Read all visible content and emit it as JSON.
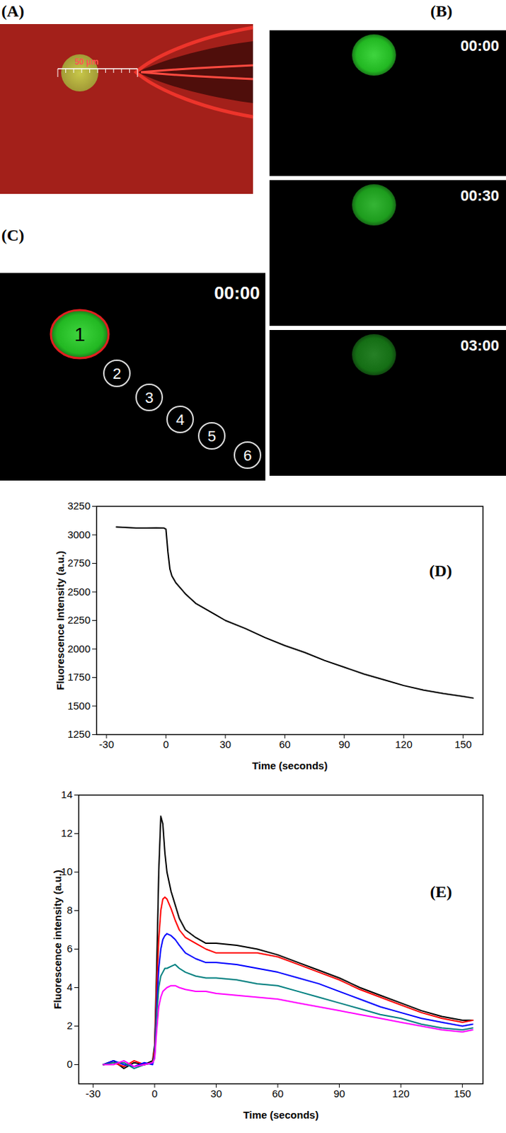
{
  "image_panels": {
    "A": {
      "label": "(A)",
      "scale_bar": "50 μm"
    },
    "B": {
      "label": "(B)",
      "timestamps": [
        "00:00",
        "00:30",
        "03:00"
      ]
    },
    "C": {
      "label": "(C)",
      "timestamp": "00:00",
      "regions": [
        "1",
        "2",
        "3",
        "4",
        "5",
        "6"
      ]
    }
  },
  "chart_data": [
    {
      "type": "line",
      "annotations": [
        "(D)"
      ],
      "x_label": "Time (seconds)",
      "y_label": "Fluorescence Intensity (a.u.)",
      "x": [
        -25,
        -20,
        -15,
        -10,
        -5,
        -1,
        0,
        1,
        2,
        3,
        5,
        8,
        10,
        15,
        20,
        25,
        30,
        40,
        50,
        60,
        70,
        80,
        90,
        100,
        110,
        120,
        130,
        140,
        150,
        155
      ],
      "series": [
        {
          "color": "#000000",
          "values": [
            3070,
            3065,
            3060,
            3060,
            3062,
            3060,
            3050,
            2850,
            2700,
            2640,
            2580,
            2520,
            2480,
            2400,
            2350,
            2300,
            2250,
            2180,
            2100,
            2030,
            1970,
            1900,
            1840,
            1780,
            1730,
            1680,
            1640,
            1610,
            1585,
            1570
          ]
        }
      ],
      "xlim": [
        -35,
        160
      ],
      "xticks": [
        -30,
        0,
        30,
        60,
        90,
        120,
        150
      ],
      "ylim": [
        1250,
        3250
      ],
      "yticks": [
        1250,
        1500,
        1750,
        2000,
        2250,
        2500,
        2750,
        3000,
        3250
      ],
      "grid": false
    },
    {
      "type": "line",
      "annotations": [
        "(E)"
      ],
      "x_label": "Time (seconds)",
      "y_label": "Fluorescence intensity (a.u.)",
      "x": [
        -25,
        -20,
        -15,
        -10,
        -5,
        -1,
        0,
        1,
        2,
        3,
        4,
        5,
        6,
        8,
        10,
        12,
        15,
        20,
        25,
        30,
        40,
        50,
        60,
        70,
        80,
        90,
        100,
        110,
        120,
        130,
        140,
        150,
        155
      ],
      "series": [
        {
          "color": "#000000",
          "values": [
            0,
            0.2,
            -0.2,
            0.1,
            0,
            0.2,
            1,
            5,
            10,
            12.9,
            12.5,
            11,
            10,
            9,
            8.3,
            7.6,
            7,
            6.6,
            6.3,
            6.3,
            6.2,
            6.0,
            5.7,
            5.3,
            4.9,
            4.5,
            4.0,
            3.6,
            3.2,
            2.8,
            2.5,
            2.3,
            2.3
          ]
        },
        {
          "color": "#ff0000",
          "values": [
            0,
            0.1,
            -0.1,
            0.2,
            0,
            0.1,
            0.8,
            4,
            6.5,
            8,
            8.6,
            8.7,
            8.6,
            8.1,
            7.5,
            7,
            6.6,
            6.3,
            6,
            5.8,
            5.8,
            5.8,
            5.6,
            5.2,
            4.8,
            4.4,
            3.9,
            3.5,
            3.1,
            2.7,
            2.4,
            2.2,
            2.3
          ]
        },
        {
          "color": "#0000ff",
          "values": [
            0,
            0.2,
            0,
            -0.1,
            0.1,
            0,
            0.5,
            3,
            5,
            6,
            6.5,
            6.7,
            6.8,
            6.7,
            6.5,
            6.2,
            5.8,
            5.5,
            5.3,
            5.3,
            5.2,
            5.0,
            4.8,
            4.5,
            4.2,
            3.8,
            3.4,
            3.0,
            2.7,
            2.4,
            2.2,
            2.0,
            2.1
          ]
        },
        {
          "color": "#008080",
          "values": [
            0,
            0.1,
            0.1,
            -0.2,
            0,
            0.1,
            0.4,
            2.5,
            4,
            4.6,
            4.8,
            5,
            5,
            5.1,
            5.2,
            5.0,
            4.8,
            4.6,
            4.5,
            4.5,
            4.4,
            4.2,
            4.1,
            3.8,
            3.5,
            3.2,
            2.9,
            2.6,
            2.4,
            2.1,
            1.9,
            1.8,
            1.9
          ]
        },
        {
          "color": "#ff00ff",
          "values": [
            0,
            0,
            0.2,
            -0.1,
            0,
            0.1,
            0.3,
            1.8,
            3,
            3.5,
            3.8,
            3.9,
            4,
            4.1,
            4.1,
            4,
            3.9,
            3.8,
            3.8,
            3.7,
            3.6,
            3.5,
            3.4,
            3.2,
            3,
            2.8,
            2.6,
            2.4,
            2.2,
            2.0,
            1.8,
            1.7,
            1.8
          ]
        }
      ],
      "xlim": [
        -37,
        160
      ],
      "xticks": [
        -30,
        0,
        30,
        60,
        90,
        120,
        150
      ],
      "ylim": [
        -1,
        14
      ],
      "yticks": [
        0,
        2,
        4,
        6,
        8,
        10,
        12,
        14
      ],
      "grid": false
    }
  ]
}
